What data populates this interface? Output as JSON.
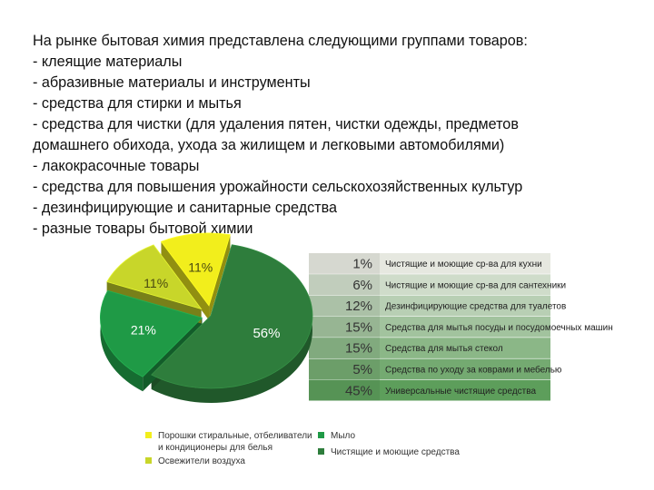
{
  "intro": {
    "lines": [
      "На рынке бытовая химия представлена следующими группами товаров:",
      "- клеящие материалы",
      "- абразивные материалы и инструменты",
      "- средства для стирки и мытья",
      "- средства для чистки (для удаления пятен, чистки одежды, предметов",
      "домашнего обихода, ухода за жилищем и легковыми автомобилями)",
      "- лакокрасочные товары",
      "- средства для повышения урожайности сельскохозяйственных культур",
      "- дезинфицирующие и санитарные средства",
      "- разные товары бытовой химии"
    ]
  },
  "colors": {
    "dark_green": "#2e7d3c",
    "mid_green": "#1f9a46",
    "yellow_green": "#c8d62a",
    "yellow": "#f2ee1c",
    "band_light": "#e6e8e0",
    "band_dark": "#5d9e5b"
  },
  "chart_data": [
    {
      "type": "pie",
      "slices": [
        {
          "label": "Чистящие и моющие средства",
          "value": 56,
          "text": "56%",
          "color": "#2e7d3c"
        },
        {
          "label": "Мыло",
          "value": 21,
          "text": "21%",
          "color": "#1f9a46"
        },
        {
          "label": "Освежители воздуха",
          "value": 11,
          "text": "11%",
          "color": "#c8d62a"
        },
        {
          "label": "Порошки стиральные, отбеливатели и кондиционеры для белья",
          "value": 11,
          "text": "11%",
          "color": "#f2ee1c"
        }
      ]
    },
    {
      "type": "bar",
      "description": "stacked breakdown of Чистящие и моющие средства",
      "items": [
        {
          "label": "Чистящие и моющие ср-ва для кухни",
          "value": 1,
          "text": "1%"
        },
        {
          "label": "Чистящие и моющие ср-ва для сантехники",
          "value": 6,
          "text": "6%"
        },
        {
          "label": "Дезинфицирующие средства для туалетов",
          "value": 12,
          "text": "12%"
        },
        {
          "label": "Средства для мытья посуды и посудомоечных машин",
          "value": 15,
          "text": "15%"
        },
        {
          "label": "Средства для мытья стекол",
          "value": 15,
          "text": "15%"
        },
        {
          "label": "Средства по уходу за коврами и мебелью",
          "value": 5,
          "text": "5%"
        },
        {
          "label": "Универсальные чистящие средства",
          "value": 45,
          "text": "45%"
        }
      ]
    }
  ],
  "legend": [
    {
      "text_lines": [
        "Порошки стиральные, отбеливатели",
        "и кондиционеры для белья"
      ],
      "color": "#f2ee1c"
    },
    {
      "text_lines": [
        "Мыло"
      ],
      "color": "#1f9a46"
    },
    {
      "text_lines": [
        "Освежители воздуха"
      ],
      "color": "#c8d62a"
    },
    {
      "text_lines": [
        "Чистящие и моющие средства"
      ],
      "color": "#2e7d3c"
    }
  ]
}
